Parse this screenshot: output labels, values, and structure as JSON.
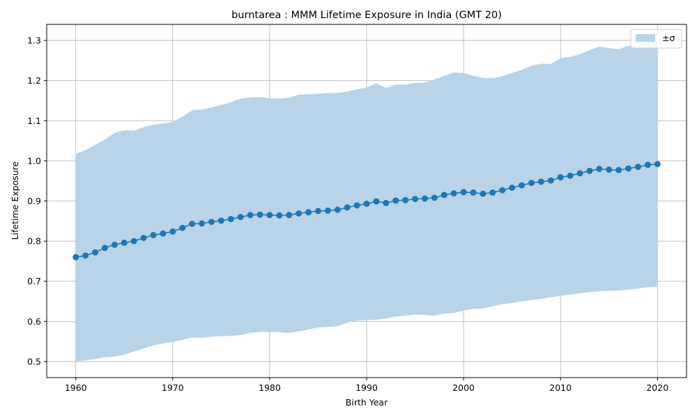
{
  "chart_data": {
    "type": "line",
    "title": "burntarea : MMM Lifetime Exposure in India (GMT 20)",
    "xlabel": "Birth Year",
    "ylabel": "Lifetime Exposure",
    "xlim": [
      1957,
      2023
    ],
    "ylim": [
      0.46,
      1.34
    ],
    "xticks": [
      1960,
      1970,
      1980,
      1990,
      2000,
      2010,
      2020
    ],
    "yticks": [
      0.5,
      0.6,
      0.7,
      0.8,
      0.9,
      1.0,
      1.1,
      1.2,
      1.3
    ],
    "grid": true,
    "legend_position": "top-right",
    "legend": [
      "±σ"
    ],
    "colors": {
      "line": "#1f77b4",
      "band": "#b9d4e8",
      "grid": "#b0b0b0"
    },
    "x": [
      1960,
      1961,
      1962,
      1963,
      1964,
      1965,
      1966,
      1967,
      1968,
      1969,
      1970,
      1971,
      1972,
      1973,
      1974,
      1975,
      1976,
      1977,
      1978,
      1979,
      1980,
      1981,
      1982,
      1983,
      1984,
      1985,
      1986,
      1987,
      1988,
      1989,
      1990,
      1991,
      1992,
      1993,
      1994,
      1995,
      1996,
      1997,
      1998,
      1999,
      2000,
      2001,
      2002,
      2003,
      2004,
      2005,
      2006,
      2007,
      2008,
      2009,
      2010,
      2011,
      2012,
      2013,
      2014,
      2015,
      2016,
      2017,
      2018,
      2019,
      2020
    ],
    "series": [
      {
        "values": [
          0.76,
          0.764,
          0.772,
          0.783,
          0.791,
          0.796,
          0.8,
          0.808,
          0.815,
          0.819,
          0.824,
          0.833,
          0.843,
          0.844,
          0.848,
          0.851,
          0.855,
          0.86,
          0.865,
          0.866,
          0.865,
          0.864,
          0.865,
          0.869,
          0.872,
          0.875,
          0.876,
          0.878,
          0.884,
          0.889,
          0.893,
          0.899,
          0.895,
          0.901,
          0.902,
          0.905,
          0.906,
          0.908,
          0.915,
          0.919,
          0.922,
          0.921,
          0.918,
          0.921,
          0.927,
          0.933,
          0.939,
          0.945,
          0.948,
          0.951,
          0.959,
          0.963,
          0.969,
          0.975,
          0.98,
          0.978,
          0.977,
          0.981,
          0.985,
          0.99,
          0.992
        ]
      }
    ],
    "band": {
      "name": "±σ",
      "upper": [
        1.018,
        1.026,
        1.04,
        1.053,
        1.07,
        1.076,
        1.075,
        1.084,
        1.09,
        1.093,
        1.097,
        1.11,
        1.126,
        1.128,
        1.133,
        1.139,
        1.146,
        1.155,
        1.158,
        1.159,
        1.156,
        1.155,
        1.157,
        1.165,
        1.166,
        1.167,
        1.169,
        1.169,
        1.173,
        1.178,
        1.183,
        1.193,
        1.182,
        1.19,
        1.19,
        1.194,
        1.195,
        1.203,
        1.212,
        1.22,
        1.219,
        1.212,
        1.207,
        1.206,
        1.211,
        1.219,
        1.227,
        1.237,
        1.242,
        1.241,
        1.256,
        1.259,
        1.266,
        1.276,
        1.285,
        1.281,
        1.278,
        1.287,
        1.29,
        1.296,
        1.298
      ],
      "lower": [
        0.501,
        0.503,
        0.506,
        0.511,
        0.512,
        0.517,
        0.525,
        0.532,
        0.54,
        0.545,
        0.549,
        0.554,
        0.56,
        0.559,
        0.562,
        0.563,
        0.564,
        0.566,
        0.571,
        0.574,
        0.574,
        0.573,
        0.571,
        0.575,
        0.58,
        0.585,
        0.586,
        0.588,
        0.597,
        0.602,
        0.603,
        0.604,
        0.607,
        0.612,
        0.614,
        0.617,
        0.616,
        0.614,
        0.619,
        0.621,
        0.627,
        0.631,
        0.632,
        0.638,
        0.643,
        0.646,
        0.65,
        0.653,
        0.656,
        0.66,
        0.664,
        0.667,
        0.67,
        0.673,
        0.675,
        0.676,
        0.677,
        0.679,
        0.682,
        0.685,
        0.686
      ]
    }
  }
}
